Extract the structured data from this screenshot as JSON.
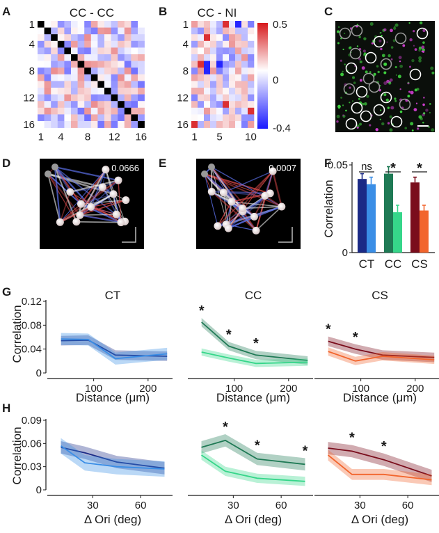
{
  "panel_labels": [
    "A",
    "B",
    "C",
    "D",
    "E",
    "F",
    "G",
    "H"
  ],
  "colors": {
    "CT": [
      "#1b2a86",
      "#3a8ee6"
    ],
    "CC": [
      "#1f7a55",
      "#36d68a"
    ],
    "CS": [
      "#7a0d1c",
      "#f2652d"
    ],
    "heat_pos": "#d7191c",
    "heat_neg": "#1a1aff",
    "diag": "#000000"
  },
  "icons": [
    "scale-bar-icon"
  ],
  "chart_data": [
    {
      "id": "A",
      "type": "heatmap",
      "title": "CC - CC",
      "x_ticks": [
        "1",
        "4",
        "8",
        "12",
        "16"
      ],
      "y_ticks": [
        "1",
        "4",
        "8",
        "12",
        "16"
      ],
      "size": 16,
      "diagonal": "black",
      "seed": 7
    },
    {
      "id": "B",
      "type": "heatmap",
      "title": "CC - NI",
      "x_ticks": [
        "1",
        "5",
        "10"
      ],
      "y_ticks": [
        "1",
        "4",
        "8",
        "12",
        "16"
      ],
      "rows": 16,
      "cols": 10,
      "seed": 19,
      "colorbar": {
        "max_label": "0.5",
        "mid_label": "0",
        "min_label": "-0.4",
        "range": [
          -0.4,
          0.5
        ]
      }
    },
    {
      "id": "C",
      "type": "image",
      "description_hidden": true
    },
    {
      "id": "D",
      "type": "network",
      "value_label": "0.0666"
    },
    {
      "id": "E",
      "type": "network",
      "value_label": "0.0007"
    },
    {
      "id": "F",
      "type": "bar",
      "ylabel": "Correlation",
      "ylim": [
        0,
        0.05
      ],
      "y_ticks": [
        "0",
        "0.05"
      ],
      "categories": [
        "CT",
        "CC",
        "CS"
      ],
      "series": [
        {
          "values": [
            0.042,
            0.045,
            0.04
          ],
          "errors": [
            0.003,
            0.004,
            0.003
          ]
        },
        {
          "values": [
            0.039,
            0.023,
            0.024
          ],
          "errors": [
            0.004,
            0.004,
            0.003
          ]
        }
      ],
      "significance": [
        "ns",
        "*",
        "*"
      ]
    },
    {
      "id": "G",
      "type": "line",
      "xlabel": "Distance (μm)",
      "ylabel": "Correlation",
      "ylim": [
        0,
        0.12
      ],
      "y_ticks": [
        "0",
        "0.04",
        "0.08",
        "0.12"
      ],
      "xlim": [
        25,
        245
      ],
      "x_ticks": [
        "100",
        "200"
      ],
      "x_tick_values": [
        100,
        200
      ],
      "x": [
        40,
        90,
        140,
        235
      ],
      "subplots": [
        {
          "title": "CT",
          "series": [
            {
              "values": [
                0.054,
                0.055,
                0.03,
                0.028
              ],
              "band": 0.008
            },
            {
              "values": [
                0.057,
                0.056,
                0.024,
                0.032
              ],
              "band": 0.01
            }
          ],
          "stars": []
        },
        {
          "title": "CC",
          "series": [
            {
              "values": [
                0.085,
                0.045,
                0.03,
                0.021
              ],
              "band": 0.007
            },
            {
              "values": [
                0.035,
                0.025,
                0.016,
                0.018
              ],
              "band": 0.006
            }
          ],
          "stars": [
            0,
            1,
            2
          ]
        },
        {
          "title": "CS",
          "series": [
            {
              "values": [
                0.053,
                0.04,
                0.03,
                0.026
              ],
              "band": 0.008
            },
            {
              "values": [
                0.036,
                0.02,
                0.028,
                0.022
              ],
              "band": 0.007
            }
          ],
          "stars": [
            0,
            1
          ]
        }
      ]
    },
    {
      "id": "H",
      "type": "line",
      "xlabel": "Δ Ori (deg)",
      "ylabel": "Correlation",
      "ylim": [
        0,
        0.09
      ],
      "y_ticks": [
        "0",
        "0.03",
        "0.06",
        "0.09"
      ],
      "xlim": [
        5,
        80
      ],
      "x_ticks": [
        "30",
        "60"
      ],
      "x_tick_values": [
        30,
        60
      ],
      "x": [
        10,
        25,
        45,
        75
      ],
      "subplots": [
        {
          "series": [
            {
              "values": [
                0.055,
                0.048,
                0.036,
                0.028
              ],
              "band": 0.008
            },
            {
              "values": [
                0.057,
                0.035,
                0.03,
                0.027
              ],
              "band": 0.01
            }
          ],
          "stars": []
        },
        {
          "series": [
            {
              "values": [
                0.055,
                0.064,
                0.04,
                0.033
              ],
              "band": 0.008
            },
            {
              "values": [
                0.045,
                0.024,
                0.015,
                0.011
              ],
              "band": 0.006
            }
          ],
          "stars": [
            1,
            2,
            3
          ]
        },
        {
          "series": [
            {
              "values": [
                0.054,
                0.05,
                0.039,
                0.018
              ],
              "band": 0.008
            },
            {
              "values": [
                0.045,
                0.02,
                0.02,
                0.013
              ],
              "band": 0.007
            }
          ],
          "stars": [
            1,
            2
          ]
        }
      ]
    }
  ]
}
